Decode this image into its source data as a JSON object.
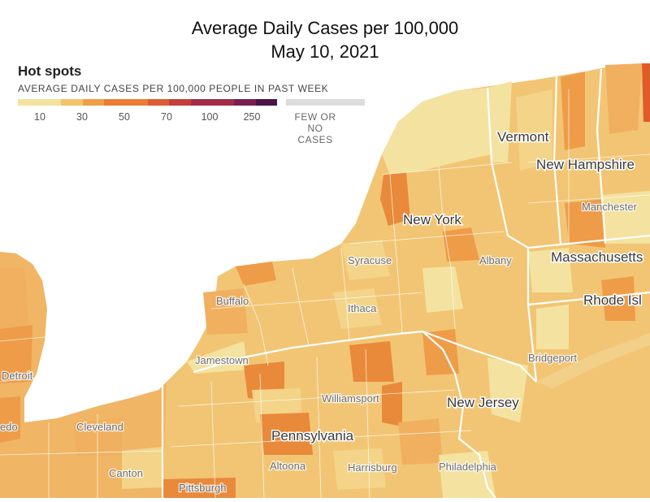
{
  "title": "Average Daily Cases per 100,000",
  "date": "May 10, 2021",
  "legend": {
    "heading": "Hot spots",
    "subheading": "AVERAGE DAILY CASES PER 100,000 PEOPLE IN PAST WEEK",
    "colors": [
      "#f4e2a0",
      "#f2c46c",
      "#ef9f48",
      "#e97d36",
      "#dc5c34",
      "#c43f3a",
      "#a22c47",
      "#7a1e50",
      "#4a1446"
    ],
    "ticks": [
      "10",
      "30",
      "50",
      "70",
      "100",
      "250"
    ],
    "no_data_label_line1": "FEW OR NO",
    "no_data_label_line2": "CASES",
    "no_data_color": "#dcdcdc"
  },
  "map": {
    "land_color": "#f2c574",
    "water_color": "#ffffff",
    "border_color": "#ffffff",
    "states": [
      {
        "name": "Vermont"
      },
      {
        "name": "New Hampshire"
      },
      {
        "name": "New York"
      },
      {
        "name": "Massachusetts"
      },
      {
        "name": "Rhode Isl"
      },
      {
        "name": "Pennsylvania"
      },
      {
        "name": "New Jersey"
      }
    ],
    "cities": [
      {
        "name": "Manchester"
      },
      {
        "name": "Syracuse"
      },
      {
        "name": "Albany"
      },
      {
        "name": "Buffalo"
      },
      {
        "name": "Ithaca"
      },
      {
        "name": "Jamestown"
      },
      {
        "name": "Bridgeport"
      },
      {
        "name": "Detroit"
      },
      {
        "name": "Williamsport"
      },
      {
        "name": "Cleveland"
      },
      {
        "name": "edo"
      },
      {
        "name": "Canton"
      },
      {
        "name": "Altoona"
      },
      {
        "name": "Harrisburg"
      },
      {
        "name": "Philadelphia"
      },
      {
        "name": "Pittsburgh"
      }
    ]
  }
}
